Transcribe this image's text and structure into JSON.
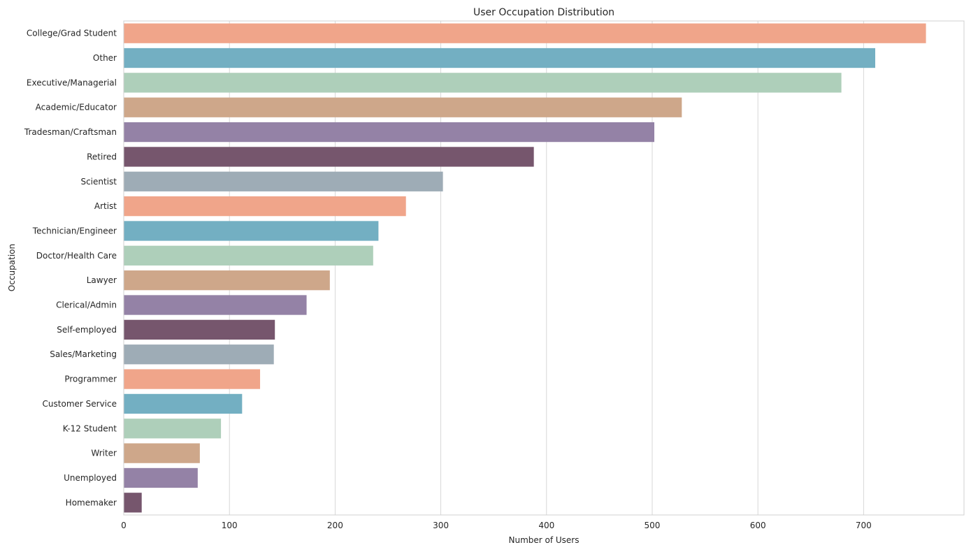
{
  "chart_data": {
    "type": "bar",
    "orientation": "horizontal",
    "title": "User Occupation Distribution",
    "xlabel": "Number of Users",
    "ylabel": "Occupation",
    "xlim": [
      0,
      795
    ],
    "xticks": [
      0,
      100,
      200,
      300,
      400,
      500,
      600,
      700
    ],
    "grid": "vertical",
    "categories": [
      "College/Grad Student",
      "Other",
      "Executive/Managerial",
      "Academic/Educator",
      "Tradesman/Craftsman",
      "Retired",
      "Scientist",
      "Artist",
      "Technician/Engineer",
      "Doctor/Health Care",
      "Lawyer",
      "Clerical/Admin",
      "Self-employed",
      "Sales/Marketing",
      "Programmer",
      "Customer Service",
      "K-12 Student",
      "Writer",
      "Unemployed",
      "Homemaker"
    ],
    "values": [
      759,
      711,
      679,
      528,
      502,
      388,
      302,
      267,
      241,
      236,
      195,
      173,
      143,
      142,
      129,
      112,
      92,
      72,
      70,
      17
    ],
    "palette": [
      "#f0a58a",
      "#73afc2",
      "#aecfba",
      "#cea78a",
      "#9482a6",
      "#76566d",
      "#9eacb6"
    ]
  }
}
